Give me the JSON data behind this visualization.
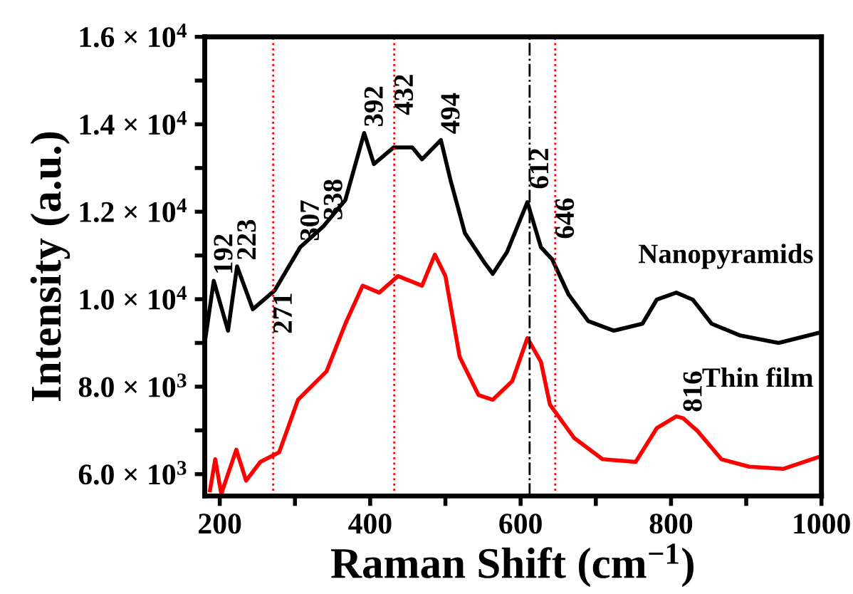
{
  "chart_data": {
    "type": "line",
    "xlabel": "Raman Shift (cm$^{−1}$)",
    "ylabel": "Intensity (a.u.)",
    "xlim": [
      180,
      1000
    ],
    "ylim": [
      5500,
      16000
    ],
    "xticks": [
      200,
      {
        "value": 300,
        "label": null
      },
      400,
      {
        "value": 500,
        "label": null
      },
      600,
      {
        "value": 700,
        "label": null
      },
      800,
      {
        "value": 900,
        "label": null
      },
      1000
    ],
    "yticks": [
      {
        "value": 6000,
        "label": "6.0 × 10$^{3}$"
      },
      {
        "value": 7000,
        "label": null
      },
      {
        "value": 8000,
        "label": "8.0 × 10$^{3}$"
      },
      {
        "value": 9000,
        "label": null
      },
      {
        "value": 10000,
        "label": "1.0 × 10$^{4}$"
      },
      {
        "value": 11000,
        "label": null
      },
      {
        "value": 12000,
        "label": "1.2 × 10$^{4}$"
      },
      {
        "value": 13000,
        "label": null
      },
      {
        "value": 14000,
        "label": "1.4 × 10$^{4}$"
      },
      {
        "value": 15000,
        "label": null
      },
      {
        "value": 16000,
        "label": "1.6 × 10$^{4}$"
      }
    ],
    "grid": false,
    "legend": false,
    "marker": "none",
    "line_style": "solid",
    "series": [
      {
        "name": "Nanopyramids",
        "color": "#000000",
        "x": [
          180,
          192,
          211,
          223,
          244,
          273,
          307,
          338,
          367,
          392,
          405,
          431,
          456,
          469,
          494,
          507,
          526,
          551,
          563,
          582,
          609,
          627,
          642,
          664,
          690,
          724,
          762,
          781,
          807,
          829,
          854,
          892,
          943,
          996
        ],
        "values": [
          9000,
          10420,
          9280,
          10750,
          9770,
          10200,
          11190,
          11670,
          12270,
          13800,
          13090,
          13470,
          13470,
          13200,
          13640,
          12710,
          11510,
          10860,
          10580,
          11080,
          12220,
          11190,
          10910,
          10100,
          9500,
          9280,
          9440,
          9990,
          10150,
          9990,
          9440,
          9170,
          9000,
          9230
        ]
      },
      {
        "name": "Thin film",
        "color": "#ff0000",
        "x": [
          187,
          194,
          202,
          222,
          235,
          254,
          279,
          304,
          342,
          367,
          390,
          412,
          437,
          469,
          486,
          500,
          519,
          544,
          563,
          589,
          609,
          627,
          639,
          671,
          709,
          753,
          781,
          807,
          816,
          835,
          867,
          904,
          949,
          996
        ],
        "values": [
          5630,
          6340,
          5550,
          6560,
          5850,
          6280,
          6500,
          7700,
          8350,
          9440,
          10310,
          10150,
          10530,
          10310,
          11020,
          10530,
          8680,
          7810,
          7700,
          8130,
          9110,
          8570,
          7590,
          6830,
          6340,
          6280,
          7050,
          7320,
          7280,
          6990,
          6340,
          6170,
          6120,
          6390
        ]
      }
    ],
    "ref_lines": [
      {
        "axis": "x",
        "value": 271,
        "color": "#ff0000",
        "line_style": "dotted"
      },
      {
        "axis": "x",
        "value": 432,
        "color": "#ff0000",
        "line_style": "dotted"
      },
      {
        "axis": "x",
        "value": 612,
        "color": "#000000",
        "line_style": "dashdot"
      },
      {
        "axis": "x",
        "value": 646,
        "color": "#ff0000",
        "line_style": "dotted"
      }
    ],
    "annotations": [
      {
        "text": "192",
        "x": 192,
        "y": 10420
      },
      {
        "text": "223",
        "x": 223,
        "y": 10750
      },
      {
        "text": "271",
        "x": 271,
        "y": 9070
      },
      {
        "text": "307",
        "x": 307,
        "y": 11190
      },
      {
        "text": "338",
        "x": 338,
        "y": 11670
      },
      {
        "text": "392",
        "x": 392,
        "y": 13800
      },
      {
        "text": "432",
        "x": 432,
        "y": 14070
      },
      {
        "text": "494",
        "x": 494,
        "y": 13640
      },
      {
        "text": "612",
        "x": 612,
        "y": 12380
      },
      {
        "text": "646",
        "x": 646,
        "y": 11240
      },
      {
        "text": "816",
        "x": 816,
        "y": 7280
      }
    ]
  }
}
